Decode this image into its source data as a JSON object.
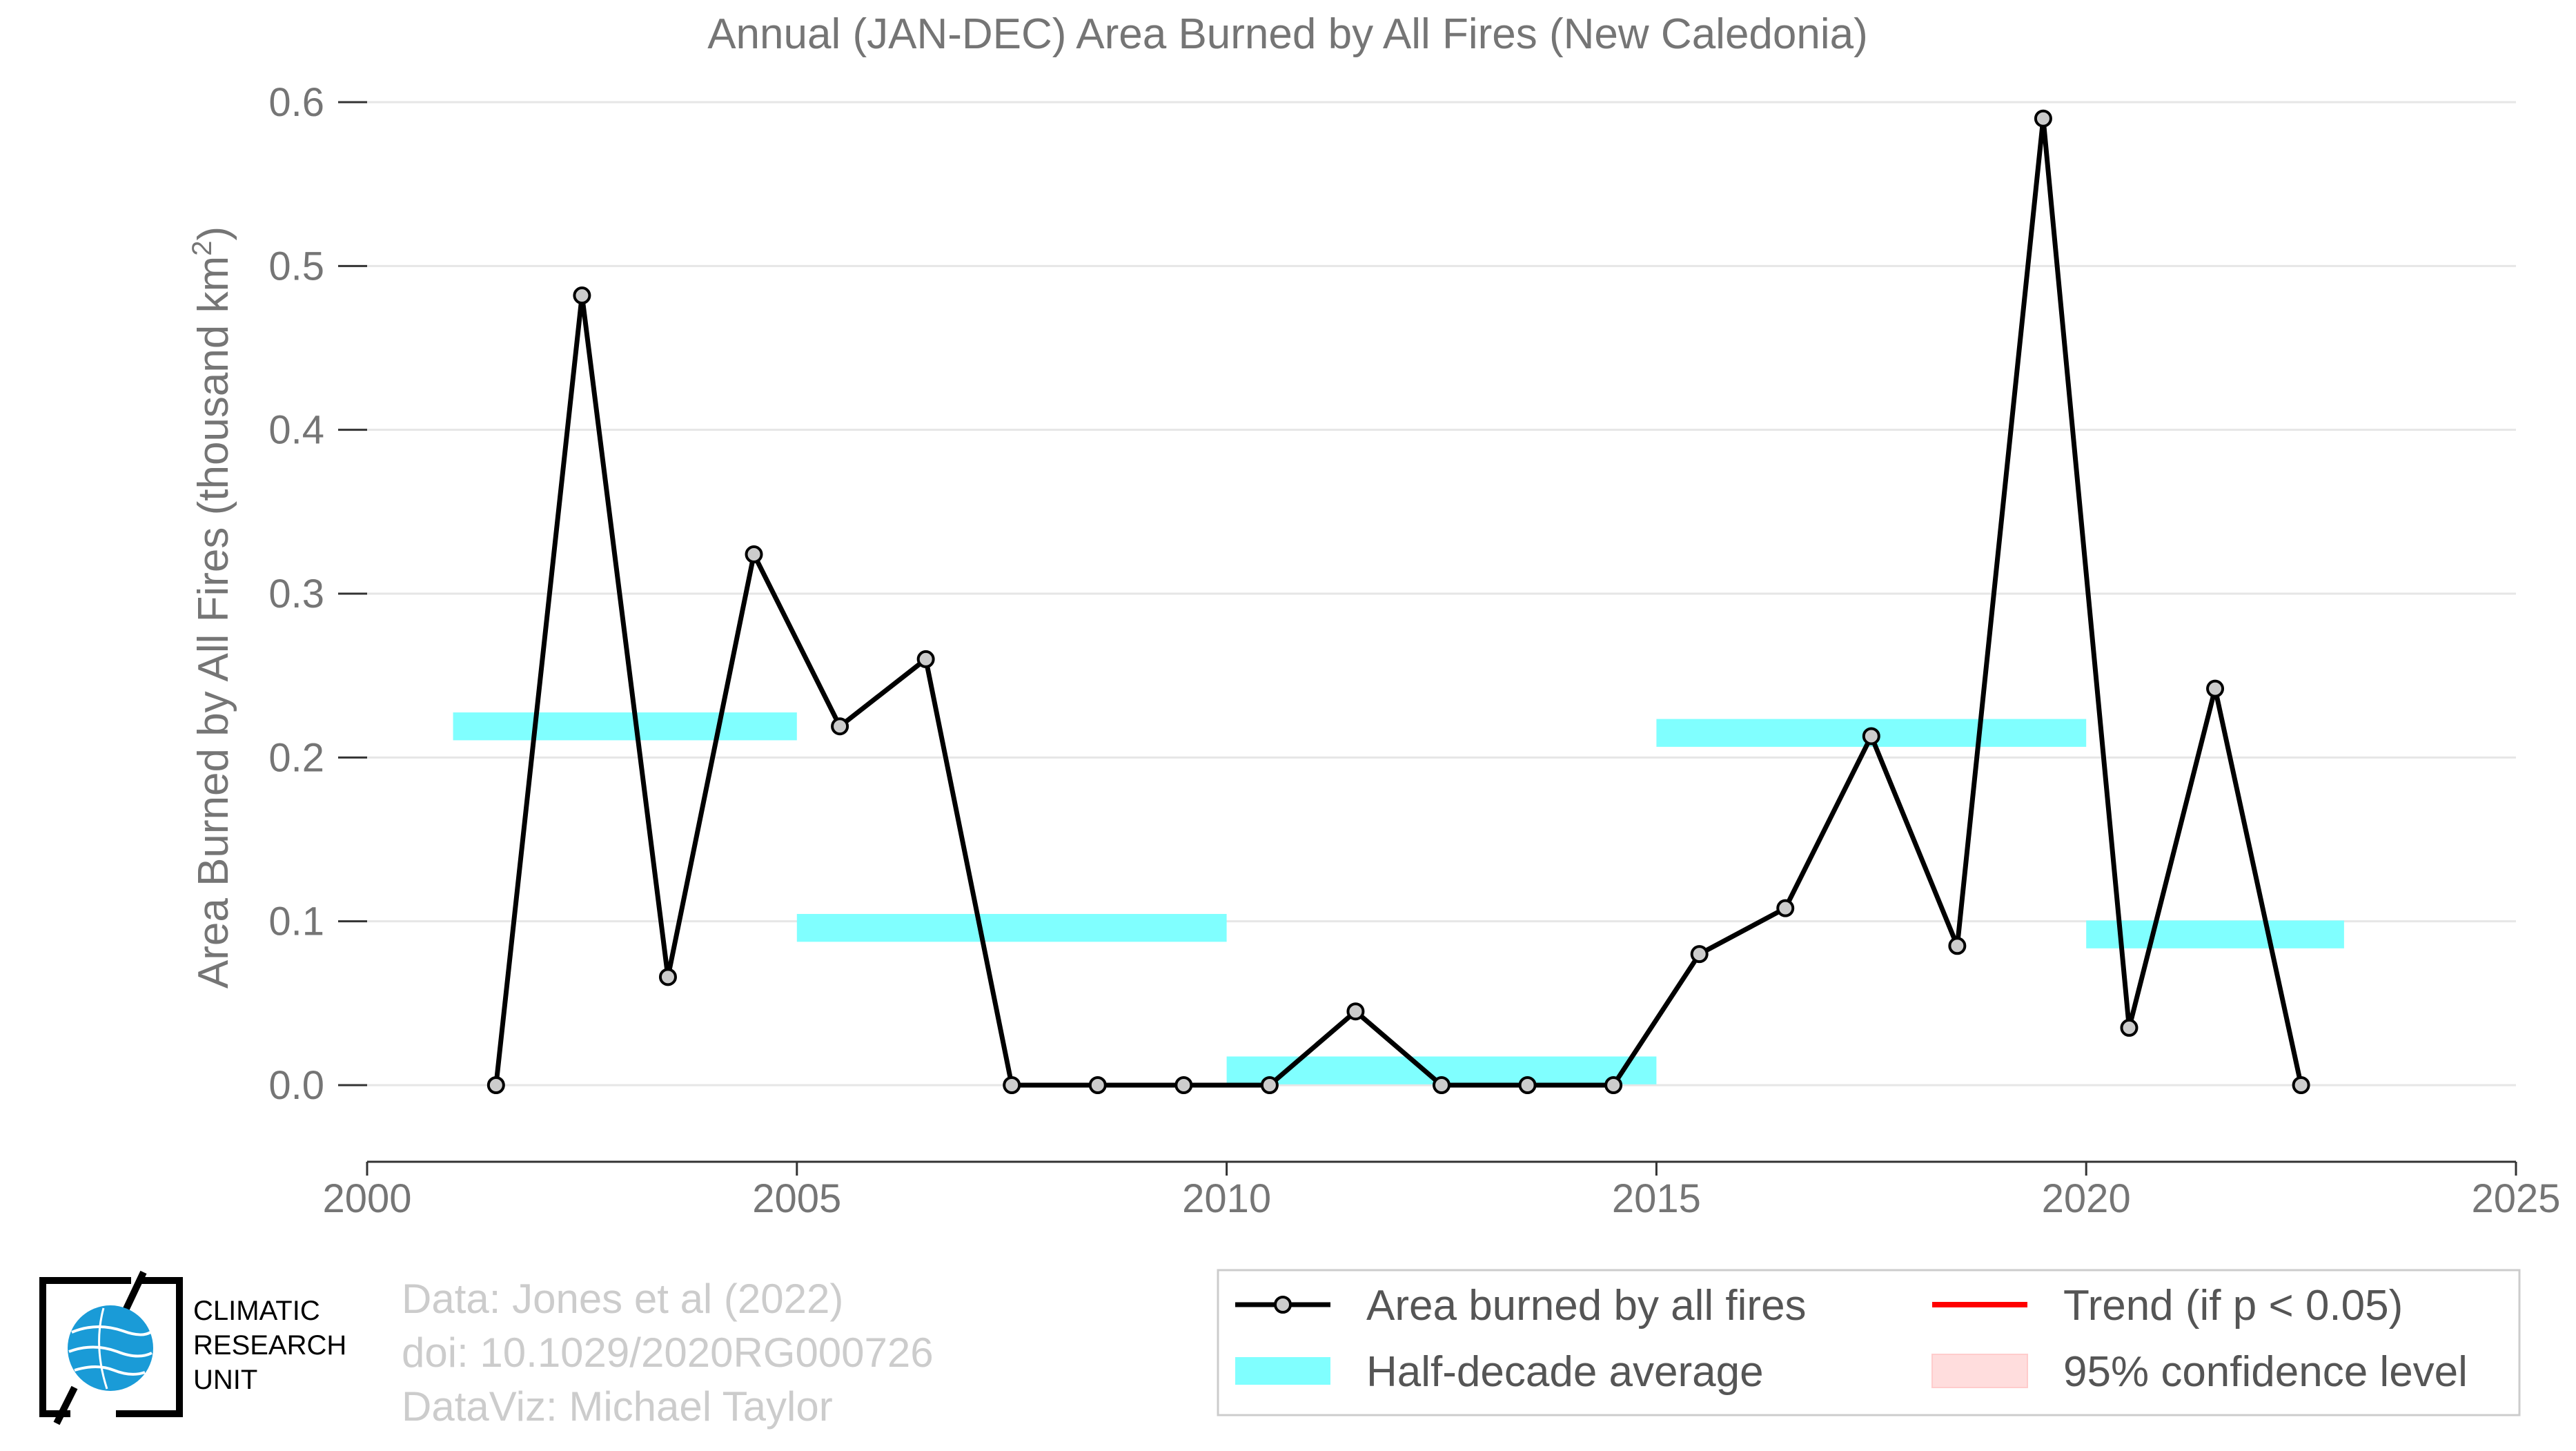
{
  "chart_data": {
    "type": "line",
    "title": "Annual (JAN-DEC) Area Burned by All Fires (New Caledonia)",
    "xlabel": "",
    "ylabel": "Area Burned by All Fires (thousand km",
    "ylabel_sup": "2",
    "ylabel_close": ")",
    "xlim": [
      2000,
      2025
    ],
    "ylim": [
      0,
      0.6
    ],
    "xticks": [
      2000,
      2005,
      2010,
      2015,
      2020,
      2025
    ],
    "yticks": [
      "0.0",
      "0.1",
      "0.2",
      "0.3",
      "0.4",
      "0.5",
      "0.6"
    ],
    "grid": true,
    "series": [
      {
        "name": "Area burned by all fires",
        "color": "#000000",
        "marker_fill": "#cccccc",
        "x": [
          2001.5,
          2002.5,
          2003.5,
          2004.5,
          2005.5,
          2006.5,
          2007.5,
          2008.5,
          2009.5,
          2010.5,
          2011.5,
          2012.5,
          2013.5,
          2014.5,
          2015.5,
          2016.5,
          2017.5,
          2018.5,
          2019.5,
          2020.5,
          2021.5,
          2022.5
        ],
        "y": [
          0.0,
          0.482,
          0.066,
          0.324,
          0.219,
          0.26,
          0.0,
          0.0,
          0.0,
          0.0,
          0.045,
          0.0,
          0.0,
          0.0,
          0.08,
          0.108,
          0.213,
          0.085,
          0.59,
          0.035,
          0.242,
          0.0
        ]
      }
    ],
    "half_decade_average": {
      "name": "Half-decade average",
      "color": "#80ffff",
      "segments": [
        {
          "x0": 2001,
          "x1": 2005,
          "y": 0.219
        },
        {
          "x0": 2005,
          "x1": 2010,
          "y": 0.096
        },
        {
          "x0": 2010,
          "x1": 2015,
          "y": 0.009
        },
        {
          "x0": 2015,
          "x1": 2020,
          "y": 0.215
        },
        {
          "x0": 2020,
          "x1": 2023,
          "y": 0.092
        }
      ]
    },
    "legend": {
      "position": "bottom-right",
      "items": [
        {
          "label": "Area burned by all fires",
          "kind": "line-marker",
          "color": "#000000"
        },
        {
          "label": "Trend (if p < 0.05)",
          "kind": "line",
          "color": "#ff0000"
        },
        {
          "label": "Half-decade average",
          "kind": "band",
          "color": "#80ffff"
        },
        {
          "label": "95% confidence level",
          "kind": "patch",
          "color": "#ffdddd"
        }
      ]
    },
    "credits": [
      "Data: Jones et al (2022)",
      "doi: 10.1029/2020RG000726",
      "DataViz: Michael Taylor"
    ]
  },
  "logo": {
    "icon": "globe-icon",
    "lines": [
      "CLIMATIC",
      "RESEARCH",
      "UNIT"
    ],
    "color": "#1a9bd7"
  }
}
